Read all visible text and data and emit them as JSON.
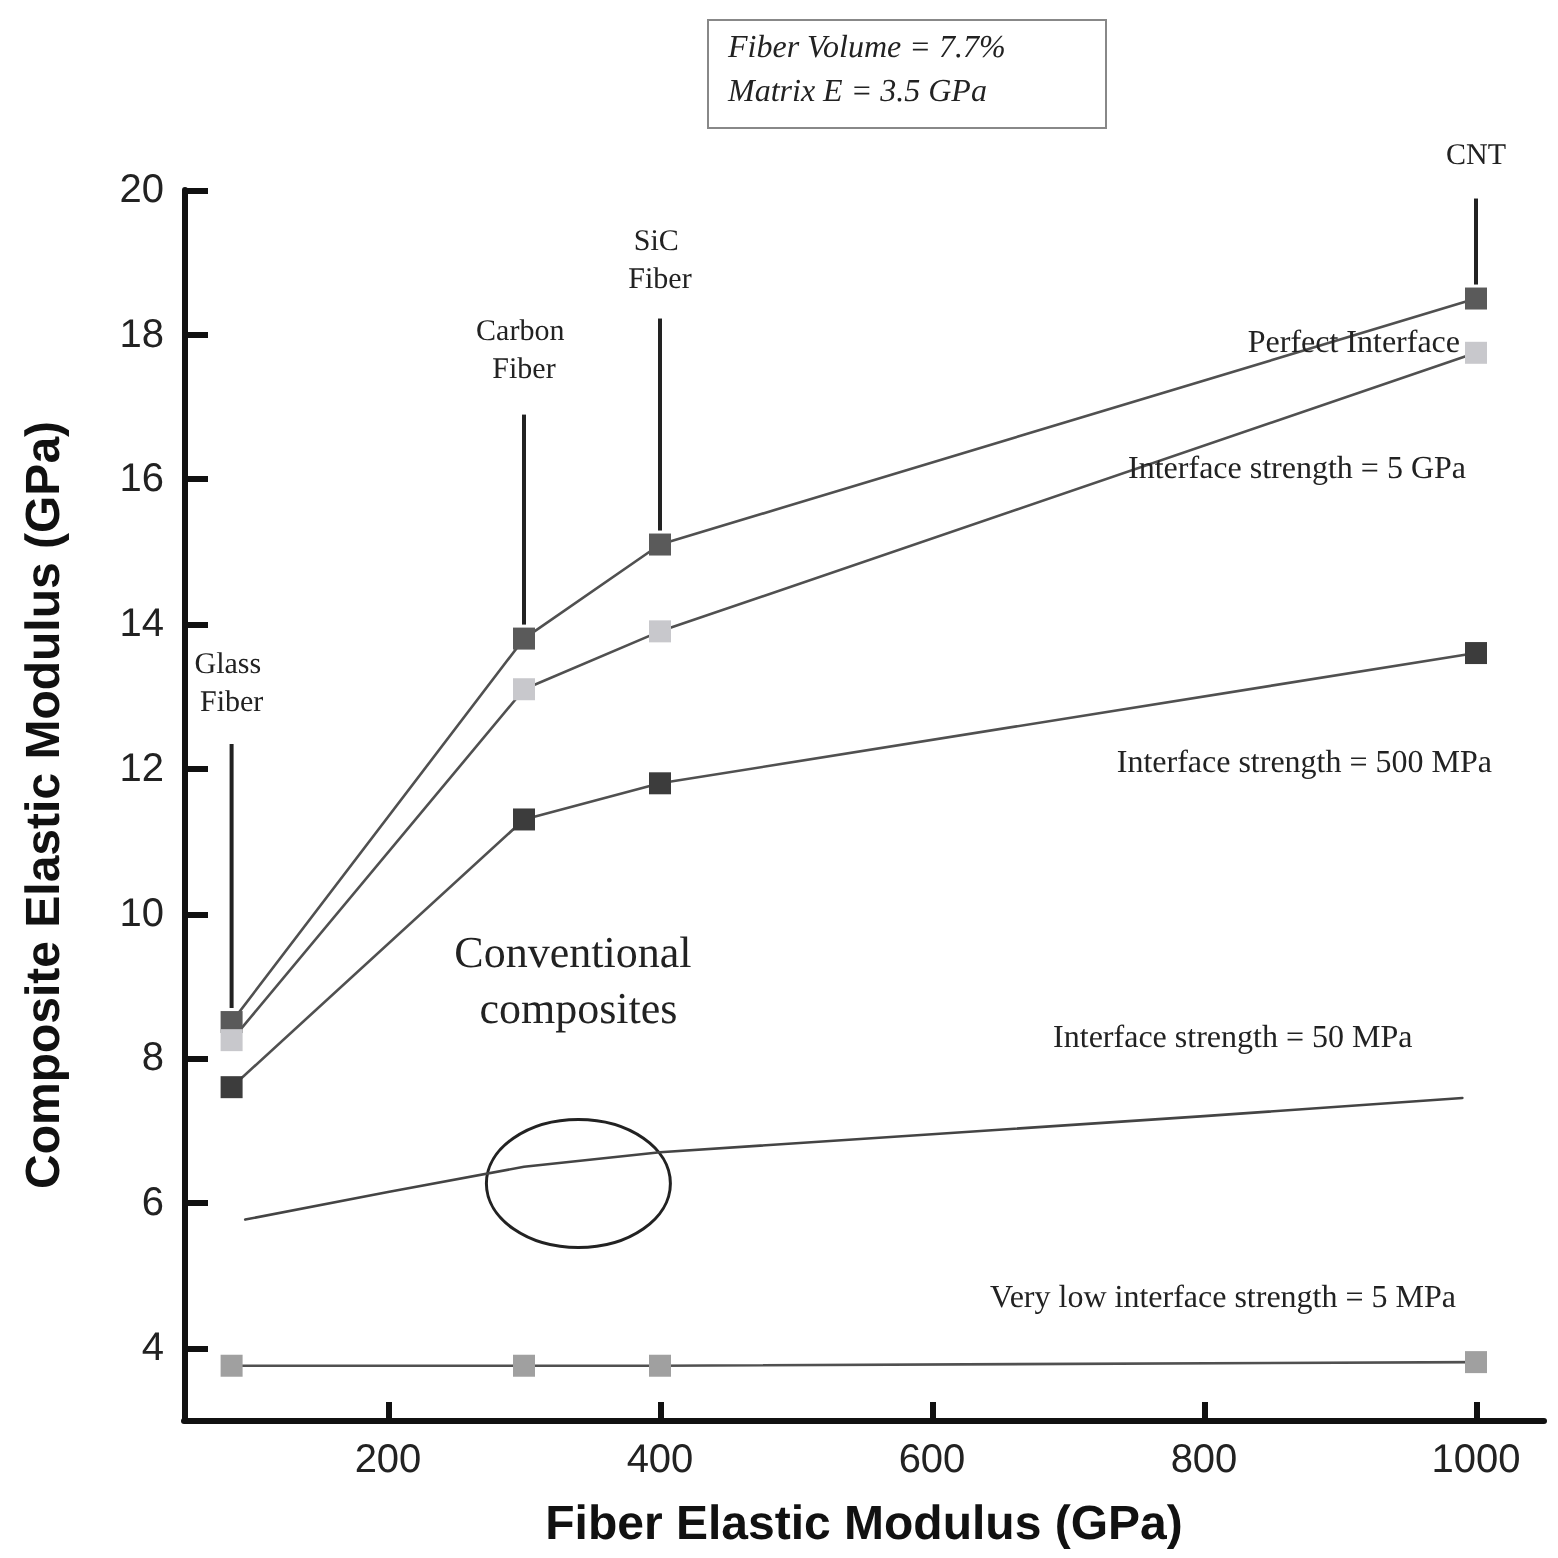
{
  "chart_data": {
    "type": "line",
    "xlabel": "Fiber Elastic Modulus (GPa)",
    "ylabel": "Composite Elastic Modulus (GPa)",
    "xlim": [
      50,
      1050
    ],
    "xticks": [
      200,
      400,
      600,
      800,
      1000
    ],
    "ylim": [
      3,
      20
    ],
    "yticks": [
      4,
      6,
      8,
      10,
      12,
      14,
      16,
      18,
      20
    ],
    "grid": false,
    "legend": false,
    "marker": "square",
    "line_style": "solid",
    "series": [
      {
        "name": "Perfect Interface",
        "color": "#5a5a5a",
        "x": [
          85,
          300,
          400,
          1000
        ],
        "values": [
          8.5,
          13.8,
          15.1,
          18.5
        ]
      },
      {
        "name": "Interface strength = 5 GPa",
        "color": "#c8c8cc",
        "x": [
          85,
          300,
          400,
          1000
        ],
        "values": [
          8.25,
          13.1,
          13.9,
          17.75
        ]
      },
      {
        "name": "Interface strength = 500 MPa",
        "color": "#3c3c3c",
        "x": [
          85,
          300,
          400,
          1000
        ],
        "values": [
          7.6,
          11.3,
          11.8,
          13.6
        ]
      },
      {
        "name": "Interface strength = 50 MPa",
        "color": "#444444",
        "marker": "none",
        "x": [
          95,
          200,
          300,
          400,
          600,
          800,
          990
        ],
        "values": [
          5.77,
          6.15,
          6.5,
          6.7,
          6.95,
          7.2,
          7.45
        ]
      },
      {
        "name": "Very low interface strength = 5 MPa",
        "color": "#a0a0a0",
        "x": [
          85,
          300,
          400,
          1000
        ],
        "values": [
          3.75,
          3.75,
          3.75,
          3.8
        ]
      }
    ],
    "annotations": [
      "Fiber Volume = 7.7%",
      "Matrix E = 3.5 GPa",
      {
        "text": "Glass Fiber",
        "x": 85,
        "y": 8.5
      },
      {
        "text": "Carbon Fiber",
        "x": 300,
        "y": 13.8
      },
      {
        "text": "SiC Fiber",
        "x": 400,
        "y": 15.1
      },
      {
        "text": "CNT",
        "x": 1000,
        "y": 18.5
      },
      {
        "text": "Conventional composites",
        "x": 340,
        "y": 6.6
      }
    ]
  }
}
